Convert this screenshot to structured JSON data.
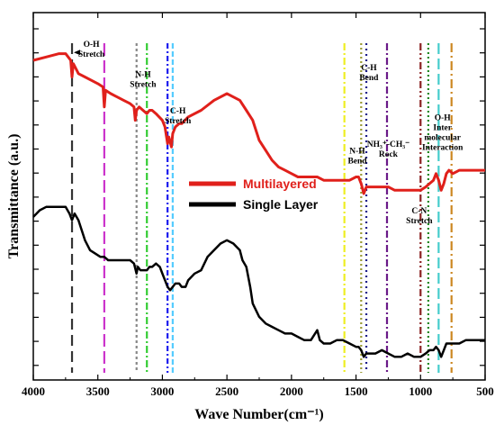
{
  "chart_data": {
    "type": "line",
    "xlabel": "Wave Number(cm⁻¹)",
    "ylabel": "Transmittance (a.u.)",
    "xlim": [
      4000,
      500
    ],
    "x_ticks": [
      4000,
      3500,
      3000,
      2500,
      2000,
      1500,
      1000,
      500
    ],
    "x_tick_labels": [
      "4000",
      "3500",
      "3000",
      "2500",
      "2000",
      "1500",
      "1000",
      "500"
    ],
    "ylim": [
      0,
      100
    ],
    "y_ticks_labeled": false,
    "legend_position": "center-left",
    "series": [
      {
        "name": "Multilayered",
        "color": "#e0201b",
        "points": [
          [
            4000,
            90
          ],
          [
            3900,
            91
          ],
          [
            3800,
            92
          ],
          [
            3750,
            92
          ],
          [
            3710,
            90
          ],
          [
            3700,
            85
          ],
          [
            3690,
            89
          ],
          [
            3650,
            86
          ],
          [
            3600,
            85
          ],
          [
            3550,
            84
          ],
          [
            3500,
            83
          ],
          [
            3460,
            82
          ],
          [
            3450,
            76
          ],
          [
            3440,
            81
          ],
          [
            3400,
            80
          ],
          [
            3350,
            79
          ],
          [
            3300,
            78
          ],
          [
            3250,
            77
          ],
          [
            3220,
            76
          ],
          [
            3210,
            72
          ],
          [
            3200,
            75
          ],
          [
            3180,
            76
          ],
          [
            3150,
            75
          ],
          [
            3120,
            74
          ],
          [
            3100,
            75
          ],
          [
            3080,
            75
          ],
          [
            3050,
            74
          ],
          [
            3000,
            72
          ],
          [
            2980,
            70
          ],
          [
            2960,
            65
          ],
          [
            2950,
            67
          ],
          [
            2930,
            64
          ],
          [
            2920,
            68
          ],
          [
            2900,
            70
          ],
          [
            2870,
            71
          ],
          [
            2850,
            71
          ],
          [
            2800,
            73
          ],
          [
            2700,
            75
          ],
          [
            2600,
            78
          ],
          [
            2500,
            80
          ],
          [
            2450,
            79
          ],
          [
            2400,
            78
          ],
          [
            2350,
            75
          ],
          [
            2300,
            72
          ],
          [
            2250,
            66
          ],
          [
            2200,
            63
          ],
          [
            2150,
            60
          ],
          [
            2100,
            58
          ],
          [
            2050,
            57
          ],
          [
            2000,
            56
          ],
          [
            1950,
            55
          ],
          [
            1900,
            55
          ],
          [
            1850,
            55
          ],
          [
            1800,
            55
          ],
          [
            1750,
            54
          ],
          [
            1700,
            54
          ],
          [
            1650,
            54
          ],
          [
            1600,
            54
          ],
          [
            1550,
            54
          ],
          [
            1500,
            55
          ],
          [
            1480,
            55
          ],
          [
            1460,
            53
          ],
          [
            1440,
            50
          ],
          [
            1420,
            52
          ],
          [
            1400,
            52
          ],
          [
            1300,
            52
          ],
          [
            1250,
            52
          ],
          [
            1200,
            51
          ],
          [
            1150,
            51
          ],
          [
            1100,
            51
          ],
          [
            1050,
            51
          ],
          [
            1000,
            51
          ],
          [
            960,
            52
          ],
          [
            930,
            53
          ],
          [
            900,
            54
          ],
          [
            880,
            56
          ],
          [
            860,
            54
          ],
          [
            840,
            51
          ],
          [
            820,
            53
          ],
          [
            800,
            56
          ],
          [
            780,
            57
          ],
          [
            750,
            56
          ],
          [
            700,
            57
          ],
          [
            650,
            57
          ],
          [
            600,
            57
          ],
          [
            550,
            57
          ],
          [
            500,
            57
          ]
        ]
      },
      {
        "name": "Single Layer",
        "color": "#000000",
        "points": [
          [
            4000,
            43
          ],
          [
            3950,
            45
          ],
          [
            3900,
            46
          ],
          [
            3850,
            46
          ],
          [
            3800,
            46
          ],
          [
            3750,
            46
          ],
          [
            3720,
            44
          ],
          [
            3700,
            42
          ],
          [
            3680,
            44
          ],
          [
            3650,
            42
          ],
          [
            3600,
            36
          ],
          [
            3560,
            33
          ],
          [
            3520,
            32
          ],
          [
            3480,
            31
          ],
          [
            3450,
            31
          ],
          [
            3420,
            30
          ],
          [
            3400,
            30
          ],
          [
            3350,
            30
          ],
          [
            3300,
            30
          ],
          [
            3250,
            30
          ],
          [
            3220,
            29
          ],
          [
            3200,
            26
          ],
          [
            3190,
            28
          ],
          [
            3170,
            27
          ],
          [
            3150,
            27
          ],
          [
            3120,
            27
          ],
          [
            3100,
            28
          ],
          [
            3080,
            28
          ],
          [
            3050,
            29
          ],
          [
            3020,
            28
          ],
          [
            3000,
            26
          ],
          [
            2980,
            24
          ],
          [
            2960,
            22
          ],
          [
            2940,
            21
          ],
          [
            2920,
            22
          ],
          [
            2900,
            23
          ],
          [
            2870,
            23
          ],
          [
            2850,
            22
          ],
          [
            2820,
            22
          ],
          [
            2800,
            24
          ],
          [
            2750,
            26
          ],
          [
            2700,
            27
          ],
          [
            2650,
            31
          ],
          [
            2600,
            33
          ],
          [
            2550,
            35
          ],
          [
            2500,
            36
          ],
          [
            2450,
            35
          ],
          [
            2400,
            33
          ],
          [
            2380,
            30
          ],
          [
            2350,
            28
          ],
          [
            2320,
            22
          ],
          [
            2300,
            17
          ],
          [
            2250,
            13
          ],
          [
            2200,
            11
          ],
          [
            2150,
            10
          ],
          [
            2100,
            9
          ],
          [
            2050,
            8
          ],
          [
            2000,
            8
          ],
          [
            1950,
            7
          ],
          [
            1900,
            6
          ],
          [
            1850,
            6
          ],
          [
            1800,
            9
          ],
          [
            1780,
            6
          ],
          [
            1750,
            5
          ],
          [
            1700,
            5
          ],
          [
            1650,
            6
          ],
          [
            1600,
            6
          ],
          [
            1550,
            5
          ],
          [
            1500,
            4
          ],
          [
            1480,
            4
          ],
          [
            1460,
            3
          ],
          [
            1440,
            1
          ],
          [
            1420,
            2
          ],
          [
            1400,
            2
          ],
          [
            1350,
            2
          ],
          [
            1300,
            3
          ],
          [
            1250,
            2
          ],
          [
            1200,
            1
          ],
          [
            1150,
            1
          ],
          [
            1100,
            2
          ],
          [
            1050,
            1
          ],
          [
            1000,
            1
          ],
          [
            960,
            2
          ],
          [
            930,
            3
          ],
          [
            900,
            3
          ],
          [
            880,
            4
          ],
          [
            860,
            3
          ],
          [
            840,
            1
          ],
          [
            820,
            3
          ],
          [
            800,
            5
          ],
          [
            780,
            5
          ],
          [
            750,
            5
          ],
          [
            700,
            5
          ],
          [
            650,
            6
          ],
          [
            600,
            6
          ],
          [
            550,
            6
          ],
          [
            500,
            6
          ]
        ]
      }
    ],
    "reference_lines": [
      {
        "x": 3700,
        "color": "#333333",
        "dash": "12,6"
      },
      {
        "x": 3450,
        "color": "#cc33cc",
        "dash": "14,5"
      },
      {
        "x": 3200,
        "color": "#888888",
        "dash": "3,3"
      },
      {
        "x": 3120,
        "color": "#33cc33",
        "dash": "8,3,2,3"
      },
      {
        "x": 2960,
        "color": "#1a1aee",
        "dash": "6,3,2,3"
      },
      {
        "x": 2920,
        "color": "#55ccff",
        "dash": "6,3"
      },
      {
        "x": 1590,
        "color": "#eeee22",
        "dash": "8,3,2,3"
      },
      {
        "x": 1460,
        "color": "#999933",
        "dash": "2,3"
      },
      {
        "x": 1420,
        "color": "#1a1a88",
        "dash": "2,4"
      },
      {
        "x": 1260,
        "color": "#6a1a88",
        "dash": "8,3,2,3"
      },
      {
        "x": 1000,
        "color": "#8a2222",
        "dash": "8,3,2,3,2,3"
      },
      {
        "x": 940,
        "color": "#228822",
        "dash": "2,3"
      },
      {
        "x": 860,
        "color": "#44cccc",
        "dash": "12,5"
      },
      {
        "x": 760,
        "color": "#cc8822",
        "dash": "10,4,2,4"
      }
    ],
    "annotations": [
      {
        "lines": [
          "O-H",
          "Stretch"
        ],
        "x": 3550,
        "y": 94,
        "arrow": true
      },
      {
        "lines": [
          "N-H",
          "Stretch"
        ],
        "x": 3150,
        "y": 85
      },
      {
        "lines": [
          "C-H",
          "Stretch"
        ],
        "x": 2880,
        "y": 74
      },
      {
        "lines": [
          "C-H",
          "Bend"
        ],
        "x": 1400,
        "y": 87
      },
      {
        "lines": [
          "N-H",
          "Bend"
        ],
        "x": 1490,
        "y": 62
      },
      {
        "lines": [
          "NH₃⁺-CH₃⁻",
          "Rock"
        ],
        "x": 1250,
        "y": 64
      },
      {
        "lines": [
          "C-N",
          "Stretch"
        ],
        "x": 1010,
        "y": 44
      },
      {
        "lines": [
          "O-H",
          "Inter",
          "molecular",
          "Interaction"
        ],
        "x": 830,
        "y": 72
      }
    ]
  }
}
